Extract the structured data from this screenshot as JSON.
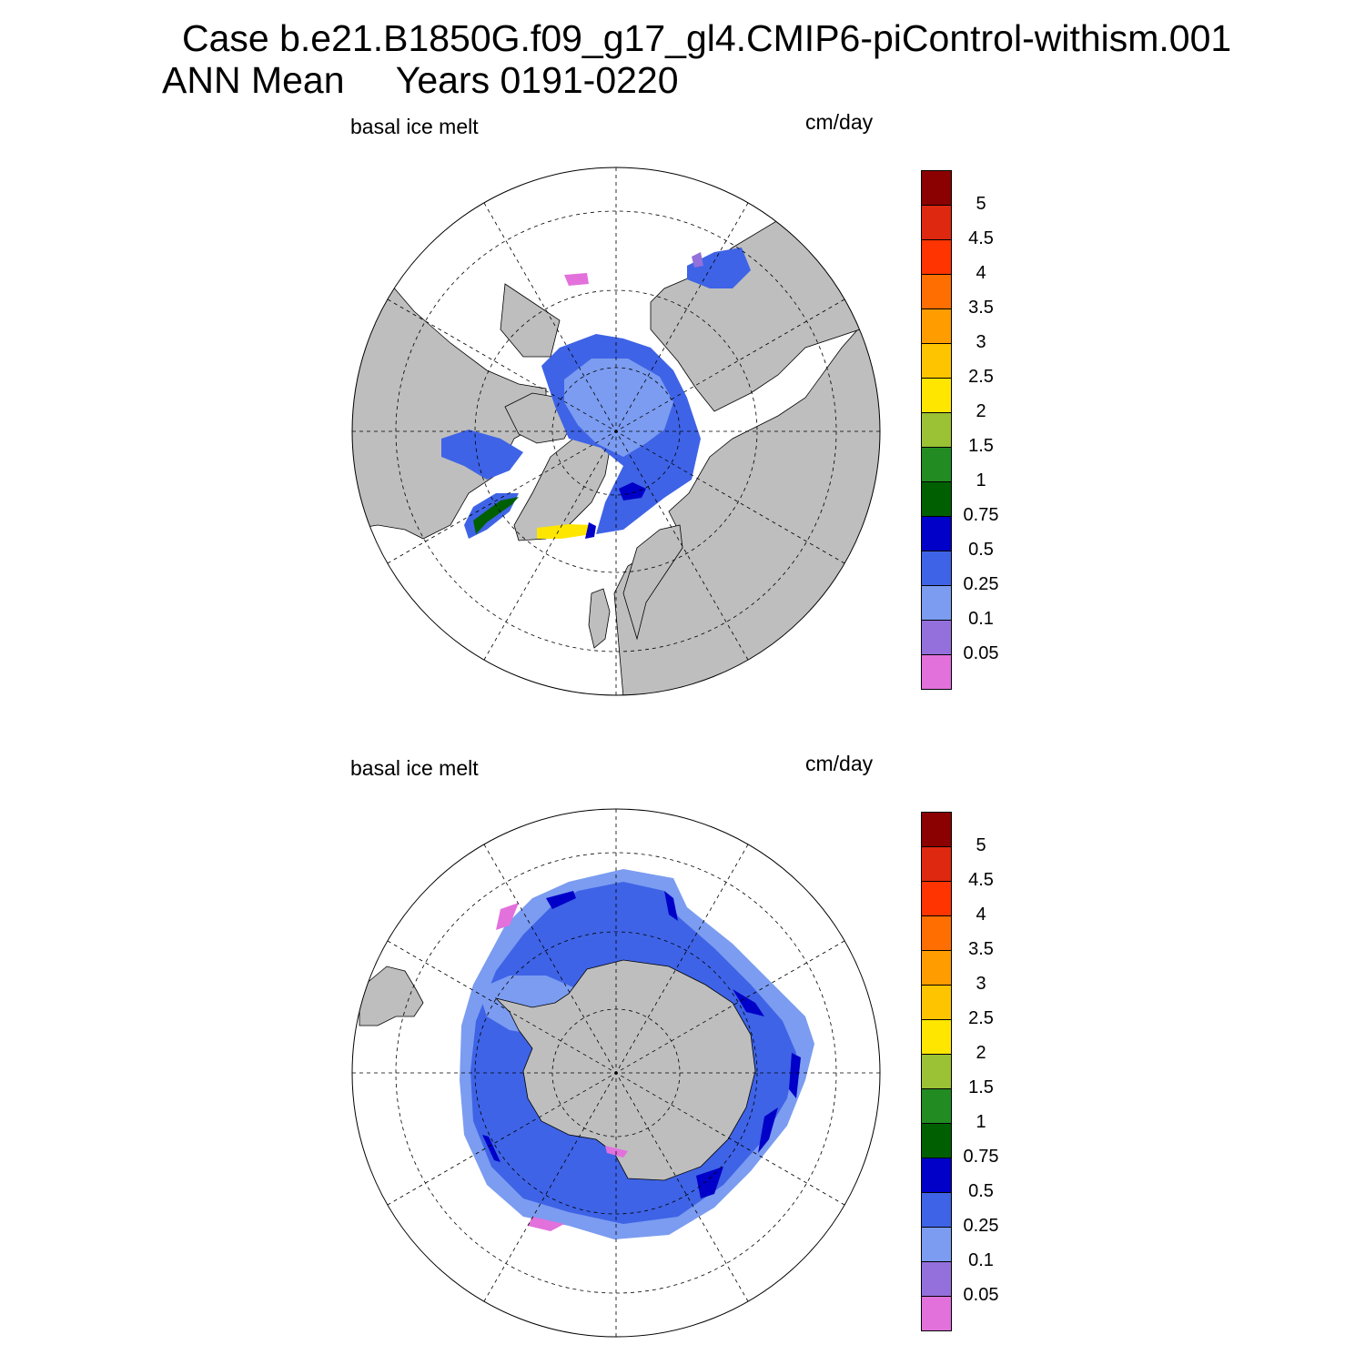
{
  "title": {
    "line1": "Case b.e21.B1850G.f09_g17_gl4.CMIP6-piControl-withism.001",
    "line2": "ANN Mean     Years 0191-0220"
  },
  "panels": [
    {
      "left_label": "basal ice melt",
      "right_label": "cm/day",
      "hemisphere": "north"
    },
    {
      "left_label": "basal ice melt",
      "right_label": "cm/day",
      "hemisphere": "south"
    }
  ],
  "colorbar": {
    "colors": [
      "#e271dc",
      "#9370db",
      "#7b9cf0",
      "#3e63e6",
      "#0000c8",
      "#005f00",
      "#228b22",
      "#9bc134",
      "#ffe600",
      "#ffc400",
      "#ff9c00",
      "#ff6e00",
      "#ff3400",
      "#de2810",
      "#8b0000"
    ],
    "labels": [
      "0.05",
      "0.1",
      "0.25",
      "0.5",
      "0.75",
      "1",
      "1.5",
      "2",
      "2.5",
      "3",
      "3.5",
      "4",
      "4.5",
      "5"
    ]
  },
  "colors": {
    "land": "#bebebe",
    "ocean": "#ffffff",
    "grid": "#000000"
  }
}
